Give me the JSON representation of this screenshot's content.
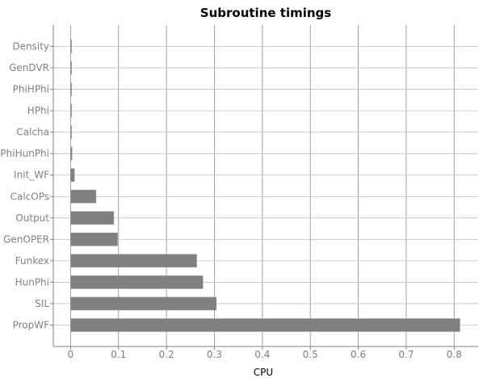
{
  "chart_data": {
    "type": "bar",
    "orientation": "horizontal",
    "title": "Subroutine timings",
    "xlabel": "CPU",
    "ylabel": "",
    "categories": [
      "Density",
      "GenDVR",
      "PhiHPhi",
      "HPhi",
      "Calcha",
      "PhiHunPhi",
      "Init_WF",
      "CalcOPs",
      "Output",
      "GenOPER",
      "Funkex",
      "HunPhi",
      "SIL",
      "PropWF"
    ],
    "values": [
      0.001,
      0.001,
      0.002,
      0.002,
      0.002,
      0.003,
      0.008,
      0.053,
      0.09,
      0.098,
      0.263,
      0.276,
      0.304,
      0.812
    ],
    "xlim": [
      -0.036,
      0.85
    ],
    "xticks": [
      "0",
      "0.1",
      "0.2",
      "0.3",
      "0.4",
      "0.5",
      "0.6",
      "0.7",
      "0.8"
    ],
    "grid": true,
    "bar_color": "#808080"
  }
}
